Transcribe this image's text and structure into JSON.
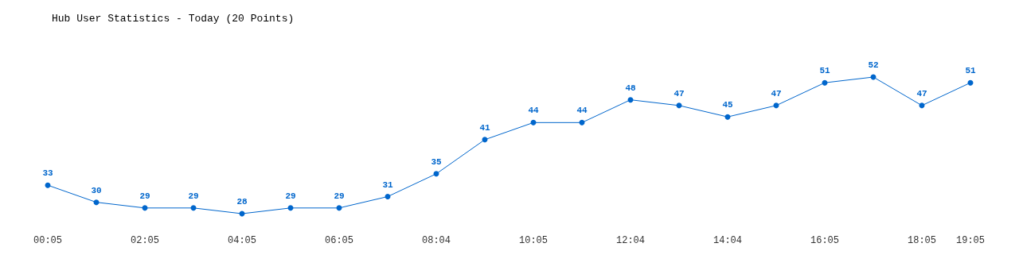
{
  "chart_data": {
    "type": "line",
    "title": "Hub User Statistics - Today (20 Points)",
    "categories": [
      "00:05",
      null,
      "02:05",
      null,
      "04:05",
      null,
      "06:05",
      null,
      "08:04",
      null,
      "10:05",
      null,
      "12:04",
      null,
      "14:04",
      null,
      "16:05",
      null,
      "18:05",
      "19:05"
    ],
    "series": [
      {
        "color": "#0066cc",
        "values": [
          33,
          30,
          29,
          29,
          28,
          29,
          29,
          31,
          35,
          41,
          44,
          44,
          48,
          47,
          45,
          47,
          51,
          52,
          47,
          51
        ]
      }
    ],
    "data_labels": true,
    "marker": "circle"
  }
}
